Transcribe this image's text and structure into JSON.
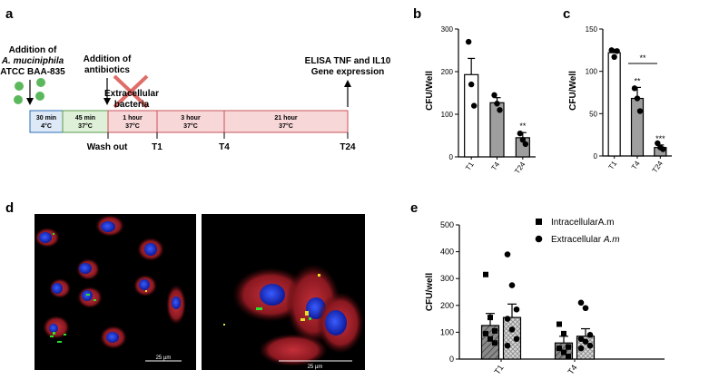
{
  "panels": {
    "a": "a",
    "b": "b",
    "c": "c",
    "d": "d",
    "e": "e"
  },
  "timeline": {
    "addition_label": "Addition of",
    "organism": "A. muciniphila",
    "strain": "ATCC BAA-835",
    "antibiotics_line1": "Addition of",
    "antibiotics_line2": "antibiotics",
    "extracellular_line1": "Extracellular",
    "extracellular_line2": "bacteria",
    "elisa_line1": "ELISA TNF and IL10",
    "elisa_line2": "Gene expression",
    "wash_out": "Wash out",
    "segments": [
      {
        "time": "30 min",
        "temp": "4°C",
        "color": "#dde9f7"
      },
      {
        "time": "45 min",
        "temp": "37°C",
        "color": "#dff0d8"
      },
      {
        "time": "1 hour",
        "temp": "37°C",
        "color": "#f8d7d9"
      },
      {
        "time": "3 hour",
        "temp": "37°C",
        "color": "#f8d7d9"
      },
      {
        "time": "21 hour",
        "temp": "37°C",
        "color": "#f8d7d9"
      }
    ],
    "timepoints": [
      "T1",
      "T4",
      "T24"
    ],
    "colors": {
      "bacteria": "#5cb85c",
      "cross": "#d9534f"
    }
  },
  "chart_b": {
    "type": "bar",
    "ylabel": "CFU/Well",
    "ylim": [
      0,
      300
    ],
    "yticks": [
      "0",
      "100",
      "200",
      "300"
    ],
    "categories": [
      "T1",
      "T4",
      "T24"
    ],
    "values": [
      193,
      127,
      45
    ],
    "errors": [
      38,
      12,
      12
    ],
    "points": [
      [
        270,
        170,
        120
      ],
      [
        145,
        125,
        110
      ],
      [
        55,
        40,
        30
      ]
    ],
    "fills": [
      "#ffffff",
      "#9e9e9e",
      "#9e9e9e"
    ],
    "annotations": [
      "",
      "",
      "**"
    ]
  },
  "chart_c": {
    "type": "bar",
    "ylabel": "CFU/Well",
    "ylim": [
      0,
      150
    ],
    "yticks": [
      "0",
      "50",
      "100",
      "150"
    ],
    "categories": [
      "T1",
      "T4",
      "T24"
    ],
    "values": [
      122,
      68,
      10
    ],
    "errors": [
      4,
      13,
      3
    ],
    "points": [
      [
        125,
        117,
        124
      ],
      [
        80,
        68,
        53
      ],
      [
        15,
        10,
        8
      ]
    ],
    "fills": [
      "#ffffff",
      "#9e9e9e",
      "#9e9e9e"
    ],
    "annotations": [
      "",
      "**",
      "***"
    ],
    "bracket_label": "**"
  },
  "microscopy": {
    "scale_left": "25 µm",
    "scale_right": "25 µm"
  },
  "chart_e": {
    "type": "bar",
    "ylabel": "CFU/well",
    "ylim": [
      0,
      500
    ],
    "yticks": [
      "0",
      "100",
      "200",
      "300",
      "400",
      "500"
    ],
    "categories": [
      "T1",
      "T4"
    ],
    "series": [
      {
        "name": "IntracellularA.m",
        "values": [
          125,
          60
        ],
        "errors": [
          45,
          25
        ],
        "points": [
          [
            315,
            155,
            105,
            95,
            75,
            60
          ],
          [
            130,
            95,
            45,
            40,
            25,
            10
          ]
        ]
      },
      {
        "name": "Extracellular A.m",
        "values": [
          155,
          85
        ],
        "errors": [
          50,
          28
        ],
        "points": [
          [
            390,
            275,
            185,
            150,
            110,
            75,
            50
          ],
          [
            210,
            190,
            90,
            75,
            65,
            50,
            40
          ]
        ]
      }
    ],
    "legend_items": [
      "IntracellularA.m",
      "Extracellular "
    ],
    "legend_italic": "A.m"
  }
}
